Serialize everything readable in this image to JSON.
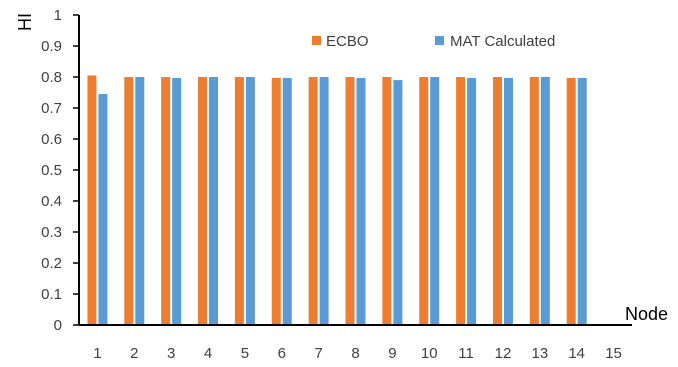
{
  "chart_data": {
    "type": "bar",
    "title": "",
    "xlabel": "Node",
    "ylabel": "HI",
    "ylim": [
      0,
      1
    ],
    "yticks": [
      "0",
      "0.1",
      "0.2",
      "0.3",
      "0.4",
      "0.5",
      "0.6",
      "0.7",
      "0.8",
      "0.9",
      "1"
    ],
    "categories": [
      "1",
      "2",
      "3",
      "4",
      "5",
      "6",
      "7",
      "8",
      "9",
      "10",
      "11",
      "12",
      "13",
      "14",
      "15"
    ],
    "series": [
      {
        "name": "ECBO",
        "color": "#ED7D31",
        "values": [
          0.805,
          0.8,
          0.8,
          0.8,
          0.8,
          0.797,
          0.8,
          0.8,
          0.8,
          0.8,
          0.8,
          0.8,
          0.8,
          0.797,
          null
        ]
      },
      {
        "name": "MAT Calculated",
        "color": "#5B9BD5",
        "values": [
          0.745,
          0.8,
          0.797,
          0.8,
          0.8,
          0.797,
          0.8,
          0.797,
          0.79,
          0.8,
          0.797,
          0.797,
          0.8,
          0.797,
          null
        ]
      }
    ],
    "legend_position": "top-right",
    "grid": false
  }
}
